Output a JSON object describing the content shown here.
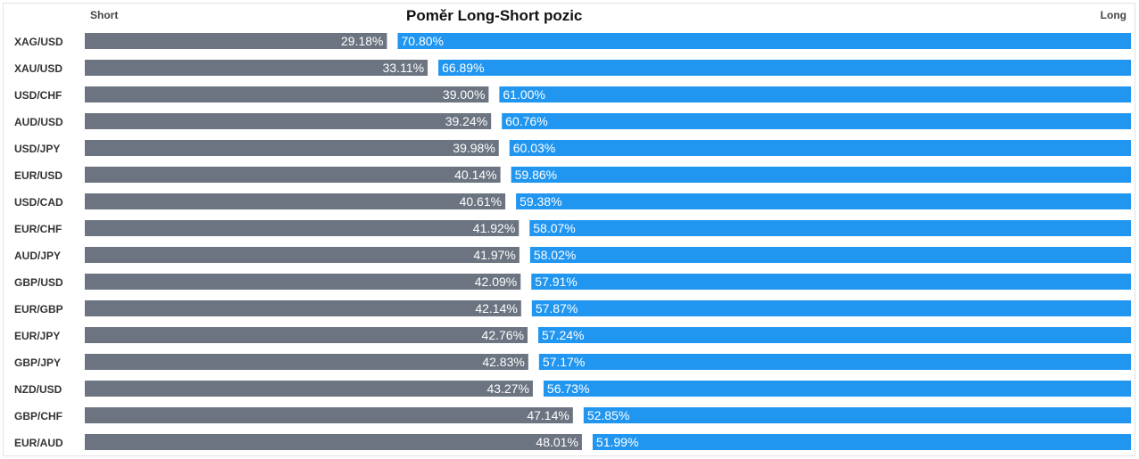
{
  "header": {
    "short_label": "Short",
    "long_label": "Long"
  },
  "chart_data": {
    "type": "bar",
    "title": "Poměr Long-Short pozic",
    "colors": {
      "short": "#6b7480",
      "long": "#2196f0"
    },
    "xlim": [
      0,
      100
    ],
    "categories": [
      "XAG/USD",
      "XAU/USD",
      "USD/CHF",
      "AUD/USD",
      "USD/JPY",
      "EUR/USD",
      "USD/CAD",
      "EUR/CHF",
      "AUD/JPY",
      "GBP/USD",
      "EUR/GBP",
      "EUR/JPY",
      "GBP/JPY",
      "NZD/USD",
      "GBP/CHF",
      "EUR/AUD"
    ],
    "series": [
      {
        "name": "Short",
        "values": [
          29.18,
          33.11,
          39.0,
          39.24,
          39.98,
          40.14,
          40.61,
          41.92,
          41.97,
          42.09,
          42.14,
          42.76,
          42.83,
          43.27,
          47.14,
          48.01
        ],
        "labels": [
          "29.18%",
          "33.11%",
          "39.00%",
          "39.24%",
          "39.98%",
          "40.14%",
          "40.61%",
          "41.92%",
          "41.97%",
          "42.09%",
          "42.14%",
          "42.76%",
          "42.83%",
          "43.27%",
          "47.14%",
          "48.01%"
        ]
      },
      {
        "name": "Long",
        "values": [
          70.8,
          66.89,
          61.0,
          60.76,
          60.03,
          59.86,
          59.38,
          58.07,
          58.02,
          57.91,
          57.87,
          57.24,
          57.17,
          56.73,
          52.85,
          51.99
        ],
        "labels": [
          "70.80%",
          "66.89%",
          "61.00%",
          "60.76%",
          "60.03%",
          "59.86%",
          "59.38%",
          "58.07%",
          "58.02%",
          "57.91%",
          "57.87%",
          "57.24%",
          "57.17%",
          "56.73%",
          "52.85%",
          "51.99%"
        ]
      }
    ]
  }
}
